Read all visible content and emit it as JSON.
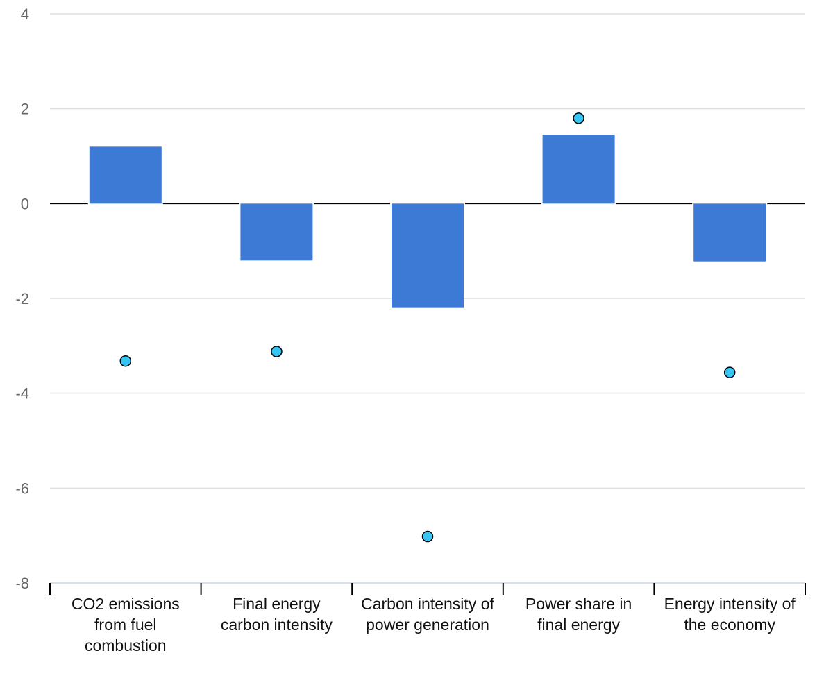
{
  "chart_data": {
    "type": "bar",
    "categories": [
      "CO2 emissions from fuel combustion",
      "Final energy carbon intensity",
      "Carbon intensity of power generation",
      "Power share in final energy",
      "Energy intensity of the economy"
    ],
    "series": [
      {
        "type": "bar",
        "values": [
          1.2,
          -1.2,
          -2.2,
          1.45,
          -1.22
        ],
        "color": "#3d7ad6"
      },
      {
        "type": "scatter",
        "values": [
          -3.32,
          -3.12,
          -7.02,
          1.8,
          -3.56
        ],
        "color": "#35c6f4"
      }
    ],
    "yticks": [
      4,
      2,
      0,
      -2,
      -4,
      -6,
      -8
    ],
    "ylim": [
      -8,
      4
    ],
    "grid": true,
    "legend": "none",
    "title": "",
    "xlabel": "",
    "ylabel": ""
  }
}
